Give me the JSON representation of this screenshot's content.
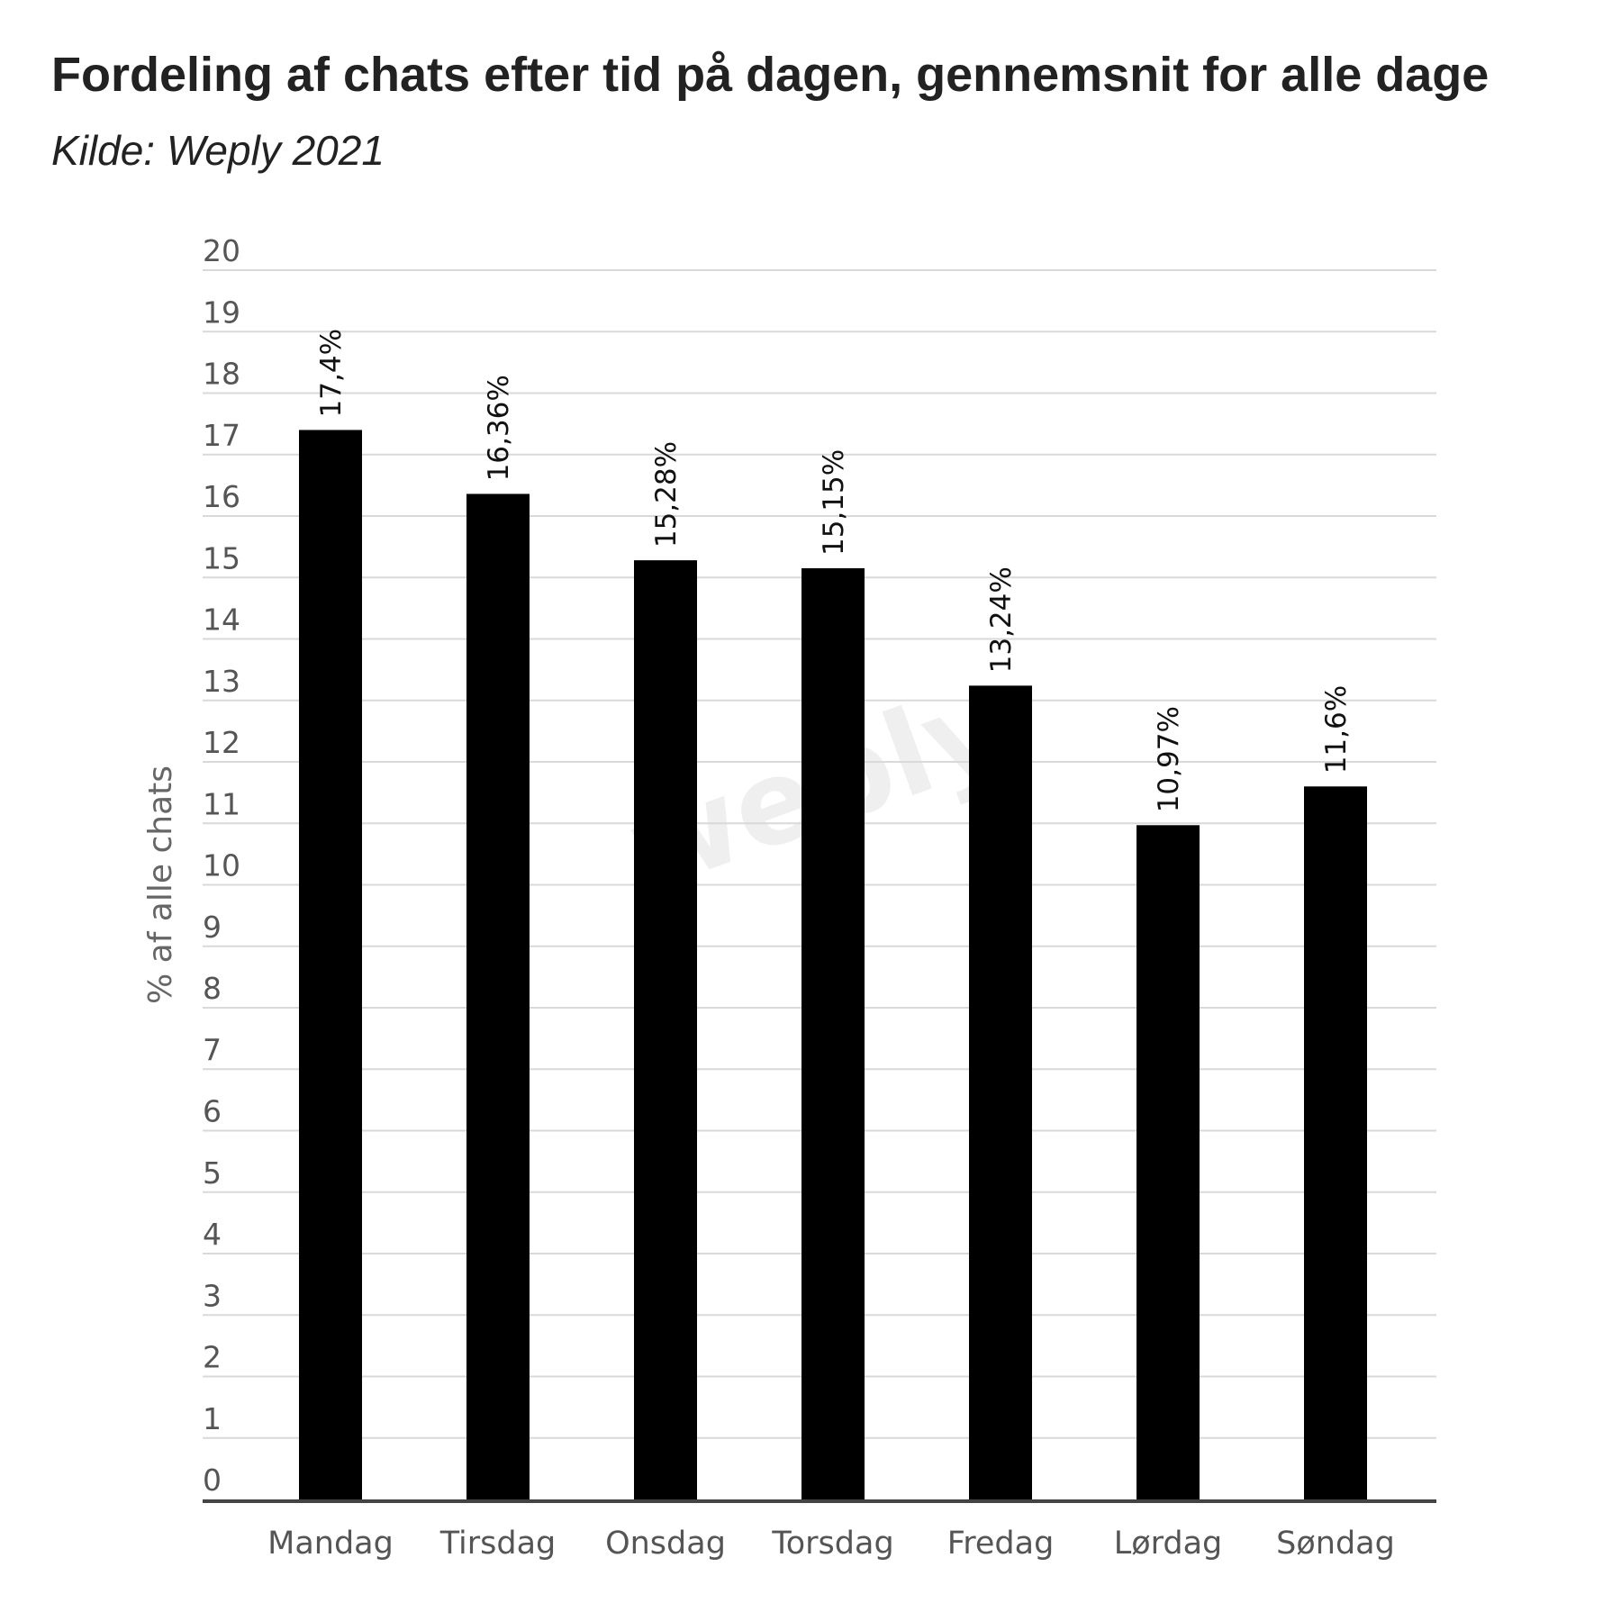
{
  "title": "Fordeling af chats efter tid på dagen, gennemsnit for alle dage",
  "subtitle": "Kilde: Weply 2021",
  "watermark": "weply",
  "chart_data": {
    "type": "bar",
    "categories": [
      "Mandag",
      "Tirsdag",
      "Onsdag",
      "Torsdag",
      "Fredag",
      "Lørdag",
      "Søndag"
    ],
    "values": [
      17.4,
      16.36,
      15.28,
      15.15,
      13.24,
      10.97,
      11.6
    ],
    "data_labels": [
      "17,4%",
      "16,36%",
      "15,28%",
      "15,15%",
      "13,24%",
      "10,97%",
      "11,6%"
    ],
    "ylabel": "% af alle chats",
    "xlabel": "",
    "ylim": [
      0,
      20
    ],
    "yticks": [
      "0",
      "1",
      "2",
      "3",
      "4",
      "5",
      "6",
      "7",
      "8",
      "9",
      "10",
      "11",
      "12",
      "13",
      "14",
      "15",
      "16",
      "17",
      "18",
      "19",
      "20"
    ],
    "grid": true,
    "legend": "none",
    "colors": {
      "bar": "#000000",
      "grid": "#d9d9d9",
      "axis": "#444444",
      "tick_text": "#555555"
    }
  }
}
